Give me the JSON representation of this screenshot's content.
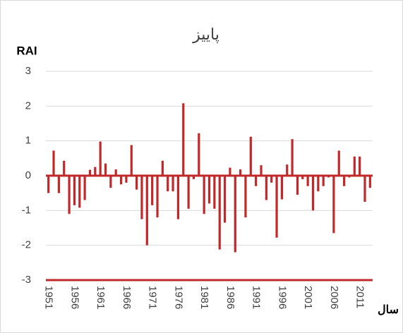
{
  "chart_data": {
    "type": "bar",
    "title": "پاییز",
    "y_label": "RAI",
    "x_label": "سال",
    "categories": [
      "1951",
      null,
      null,
      null,
      null,
      "1956",
      null,
      null,
      null,
      null,
      "1961",
      null,
      null,
      null,
      null,
      "1966",
      null,
      null,
      null,
      null,
      "1971",
      null,
      null,
      null,
      null,
      "1976",
      null,
      null,
      null,
      null,
      "1981",
      null,
      null,
      null,
      null,
      "1986",
      null,
      null,
      null,
      null,
      "1991",
      null,
      null,
      null,
      null,
      "1996",
      null,
      null,
      null,
      null,
      "2001",
      null,
      null,
      null,
      null,
      "2006",
      null,
      null,
      null,
      null,
      "2011",
      null,
      null
    ],
    "values": [
      -0.5,
      0.72,
      -0.5,
      0.43,
      -1.1,
      -0.85,
      -0.92,
      -0.7,
      0.17,
      0.25,
      0.98,
      0.35,
      -0.35,
      0.18,
      -0.25,
      -0.2,
      0.88,
      -0.4,
      -1.25,
      -2.0,
      -0.85,
      -1.2,
      0.43,
      -0.45,
      -0.45,
      -1.25,
      2.08,
      -0.95,
      -0.1,
      1.22,
      -1.1,
      -0.8,
      -0.95,
      -2.12,
      -1.35,
      0.23,
      -2.2,
      0.18,
      -1.2,
      1.12,
      -0.3,
      0.3,
      -0.7,
      -0.2,
      -1.78,
      -0.68,
      0.32,
      1.05,
      -0.55,
      -0.1,
      -0.3,
      -1.0,
      -0.45,
      -0.3,
      -0.05,
      -1.65,
      0.72,
      -0.3,
      -0.05,
      0.55,
      0.55,
      -0.75,
      -0.35
    ],
    "color": "#c0282a",
    "ylim": [
      -3,
      3
    ],
    "yticks": [
      -3,
      -2,
      -1,
      0,
      1,
      2,
      3
    ],
    "grid": true
  }
}
